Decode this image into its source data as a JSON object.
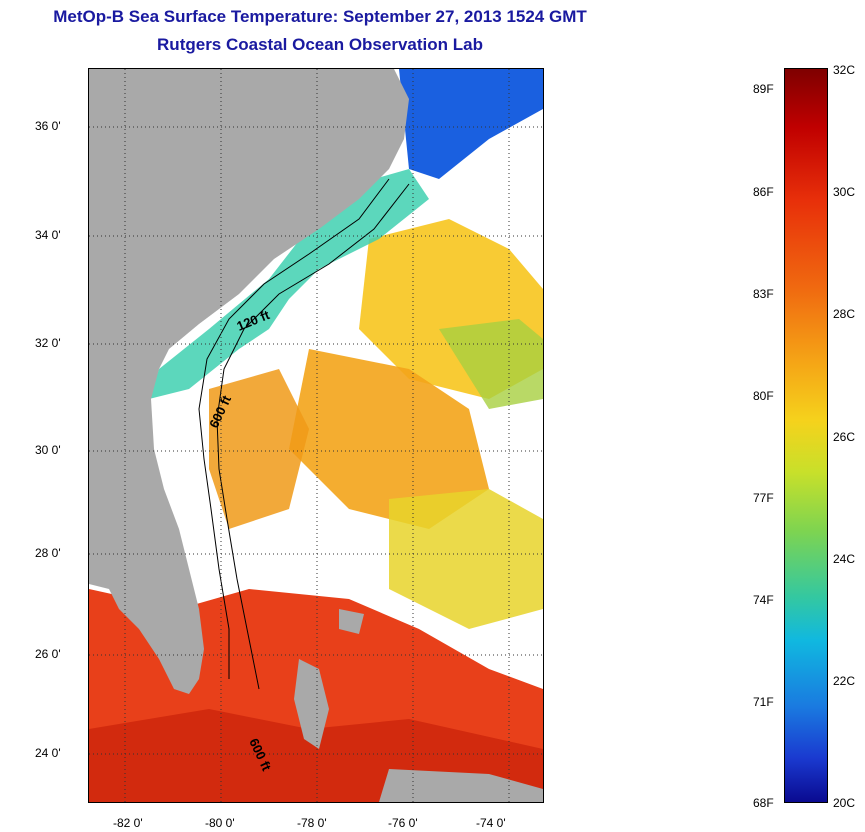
{
  "header": {
    "title": "MetOp-B Sea Surface Temperature:  September 27, 2013 1524 GMT",
    "subtitle": "Rutgers Coastal Ocean Observation Lab"
  },
  "map": {
    "lat_labels": [
      "36 0'",
      "34 0'",
      "32 0'",
      "30 0'",
      "28 0'",
      "26 0'",
      "24 0'"
    ],
    "lon_labels": [
      "-82 0'",
      "-80 0'",
      "-78 0'",
      "-76 0'",
      "-74 0'"
    ],
    "contour_labels": [
      "120 ft",
      "600 ft",
      "600 ft"
    ]
  },
  "colorbar": {
    "fahrenheit": [
      "89F",
      "86F",
      "83F",
      "80F",
      "77F",
      "74F",
      "71F",
      "68F"
    ],
    "celsius": [
      "32C",
      "30C",
      "28C",
      "26C",
      "24C",
      "22C",
      "20C"
    ]
  },
  "colors": {
    "land": "#a9a9a9",
    "title": "#1a1aa0"
  }
}
